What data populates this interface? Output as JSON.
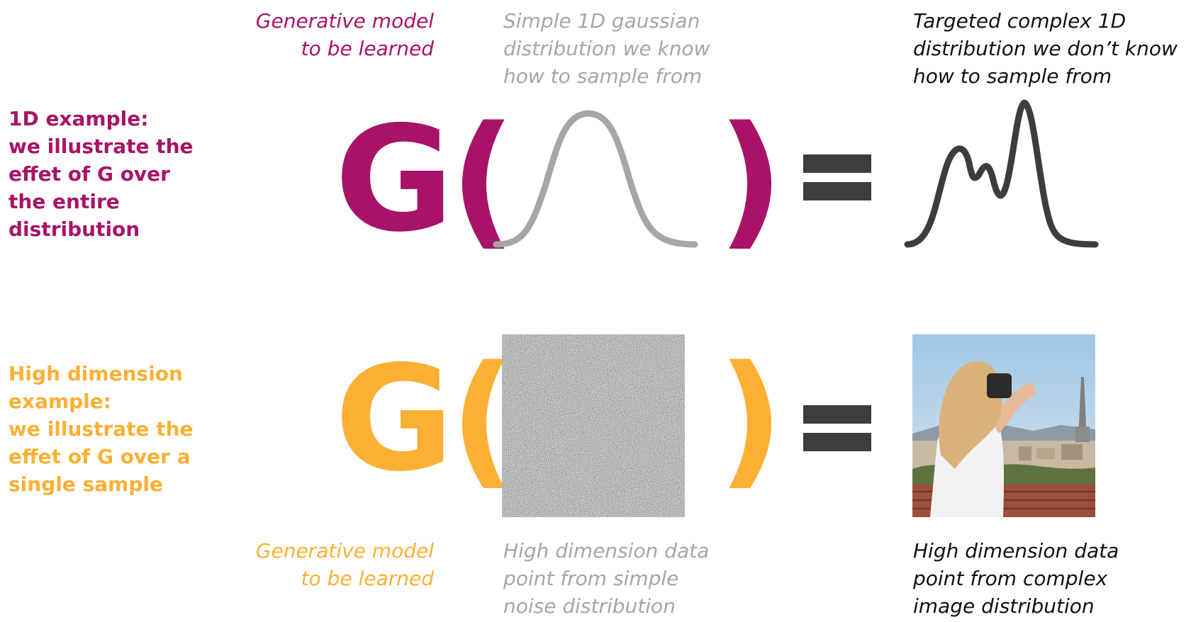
{
  "colors": {
    "magenta": "#a81367",
    "orange": "#fbb034",
    "grey": "#a6a6a6",
    "dark": "#3d3d3d"
  },
  "row1": {
    "side_label": "1D example:\nwe illustrate the\neffet of G over\nthe entire\ndistribution",
    "model_caption": "Generative model\nto be learned",
    "input_caption": "Simple 1D gaussian\ndistribution we know\nhow to sample from",
    "output_caption": "Targeted complex 1D\ndistribution we don’t know\nhow to sample from",
    "g_symbol": "G(",
    "close_paren": ")"
  },
  "row2": {
    "side_label": "High dimension\nexample:\nwe illustrate the\neffet of G over a\nsingle sample",
    "model_caption": "Generative model\nto be learned",
    "input_caption": "High dimension data\npoint from simple\nnoise distribution",
    "output_caption": "High dimension data\npoint from complex\nimage distribution",
    "g_symbol": "G(",
    "close_paren": ")"
  },
  "icons": {
    "gaussian": "gaussian-curve-icon",
    "multimodal": "multimodal-curve-icon",
    "noise": "noise-image",
    "photo": "photo-image"
  }
}
